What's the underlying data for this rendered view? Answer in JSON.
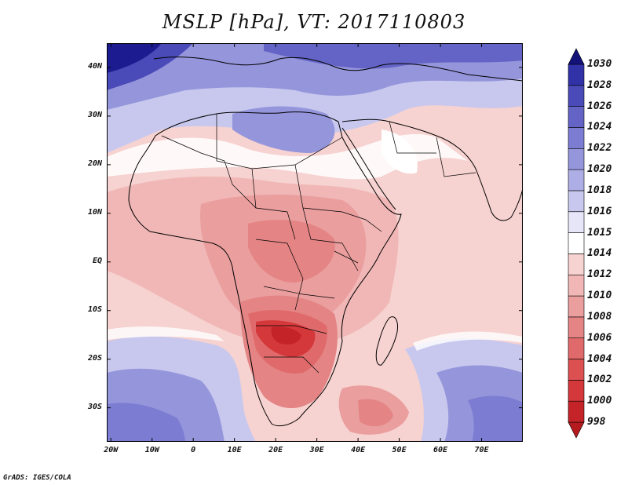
{
  "title": "MSLP [hPa], VT: 2017110803",
  "credit": "GrADS: IGES/COLA",
  "lat_labels": [
    "40N",
    "30N",
    "20N",
    "10N",
    "EQ",
    "10S",
    "20S",
    "30S"
  ],
  "lat_values": [
    40,
    30,
    20,
    10,
    0,
    -10,
    -20,
    -30
  ],
  "lon_labels": [
    "20W",
    "10W",
    "0",
    "10E",
    "20E",
    "30E",
    "40E",
    "50E",
    "60E",
    "70E"
  ],
  "lon_values": [
    -20,
    -10,
    0,
    10,
    20,
    30,
    40,
    50,
    60,
    70
  ],
  "map_extent": {
    "lon_min": -21,
    "lon_max": 80,
    "lat_min": -37,
    "lat_max": 45
  },
  "colorbar": {
    "levels": [
      "998",
      "1000",
      "1002",
      "1004",
      "1006",
      "1008",
      "1010",
      "1012",
      "1014",
      "1015",
      "1016",
      "1018",
      "1020",
      "1022",
      "1024",
      "1026",
      "1028",
      "1030"
    ],
    "colors": {
      "lt998": "#b41a1e",
      "998": "#c42428",
      "1000": "#d4383a",
      "1002": "#dc5052",
      "1004": "#e06a6b",
      "1006": "#e48485",
      "1008": "#ea9e9e",
      "1010": "#f0b7b6",
      "1012": "#f6d2d0",
      "1014": "#ffffff",
      "1015": "#e6e6f8",
      "1016": "#c8c8ee",
      "1018": "#aeaee6",
      "1020": "#9595dc",
      "1022": "#7c7cd2",
      "1024": "#6464c6",
      "1026": "#4a4ab8",
      "1028": "#3232a8",
      "1030": "#1c1c90",
      "gt1030": "#121278"
    }
  },
  "regions": {
    "north_high_pressure": {
      "hpa": "1020-1030"
    },
    "sahara": {
      "hpa": "1016-1018"
    },
    "central_africa_low": {
      "hpa": "1006-1008"
    },
    "southern_africa_low": {
      "hpa": "1002-1004"
    },
    "southern_ocean_high": {
      "hpa": "1016-1022"
    }
  }
}
